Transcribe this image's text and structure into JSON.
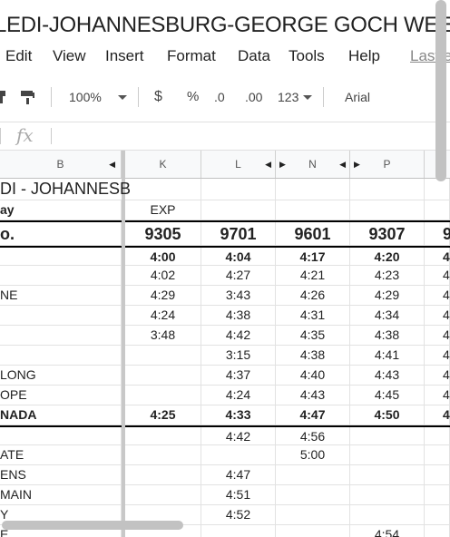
{
  "title": "LEDI-JOHANNESBURG-GEORGE GOCH WEEK",
  "menu": [
    "Edit",
    "View",
    "Insert",
    "Format",
    "Data",
    "Tools",
    "Help"
  ],
  "last_edit": "Last edit",
  "toolbar": {
    "zoom": "100%",
    "currency": "$",
    "percent": "%",
    "dec_less": ".0",
    "dec_more": ".00",
    "number_format": "123",
    "font": "Arial"
  },
  "formula_bar": {
    "fx": "fx",
    "value": ""
  },
  "columns": [
    "B",
    "K",
    "L",
    "N",
    "P"
  ],
  "rows": [
    {
      "b": "DI - JOHANNESB",
      "k": "",
      "l": "",
      "n": "",
      "p": ""
    },
    {
      "b": "ay",
      "k": "EXP",
      "l": "",
      "n": "",
      "p": ""
    },
    {
      "b": "o.",
      "k": "9305",
      "l": "9701",
      "n": "9601",
      "p": "9307",
      "extra": "9"
    },
    {
      "b": "",
      "k": "4:00",
      "l": "4:04",
      "n": "4:17",
      "p": "4:20",
      "extra": "4"
    },
    {
      "b": "",
      "k": "4:02",
      "l": "4:27",
      "n": "4:21",
      "p": "4:23",
      "extra": "4"
    },
    {
      "b": "NE",
      "k": "4:29",
      "l": "3:43",
      "n": "4:26",
      "p": "4:29",
      "extra": "4"
    },
    {
      "b": "",
      "k": "4:24",
      "l": "4:38",
      "n": "4:31",
      "p": "4:34",
      "extra": "4"
    },
    {
      "b": "",
      "k": "3:48",
      "l": "4:42",
      "n": "4:35",
      "p": "4:38",
      "extra": "4"
    },
    {
      "b": "",
      "k": "",
      "l": "3:15",
      "n": "4:38",
      "p": "4:41",
      "extra": "4"
    },
    {
      "b": "LONG",
      "k": "",
      "l": "4:37",
      "n": "4:40",
      "p": "4:43",
      "extra": "4"
    },
    {
      "b": "OPE",
      "k": "",
      "l": "4:24",
      "n": "4:43",
      "p": "4:45",
      "extra": "4"
    },
    {
      "b": "NADA",
      "k": "4:25",
      "l": "4:33",
      "n": "4:47",
      "p": "4:50",
      "extra": "4"
    },
    {
      "b": "",
      "k": "",
      "l": "4:42",
      "n": "4:56",
      "p": "",
      "extra": ""
    },
    {
      "b": "ATE",
      "k": "",
      "l": "",
      "n": "5:00",
      "p": "",
      "extra": ""
    },
    {
      "b": "ENS",
      "k": "",
      "l": "4:47",
      "n": "",
      "p": "",
      "extra": ""
    },
    {
      "b": " MAIN",
      "k": "",
      "l": "4:51",
      "n": "",
      "p": "",
      "extra": ""
    },
    {
      "b": "Y",
      "k": "",
      "l": "4:52",
      "n": "",
      "p": "",
      "extra": ""
    },
    {
      "b": "E",
      "k": "",
      "l": "",
      "n": "",
      "p": "4:54",
      "extra": ""
    }
  ]
}
